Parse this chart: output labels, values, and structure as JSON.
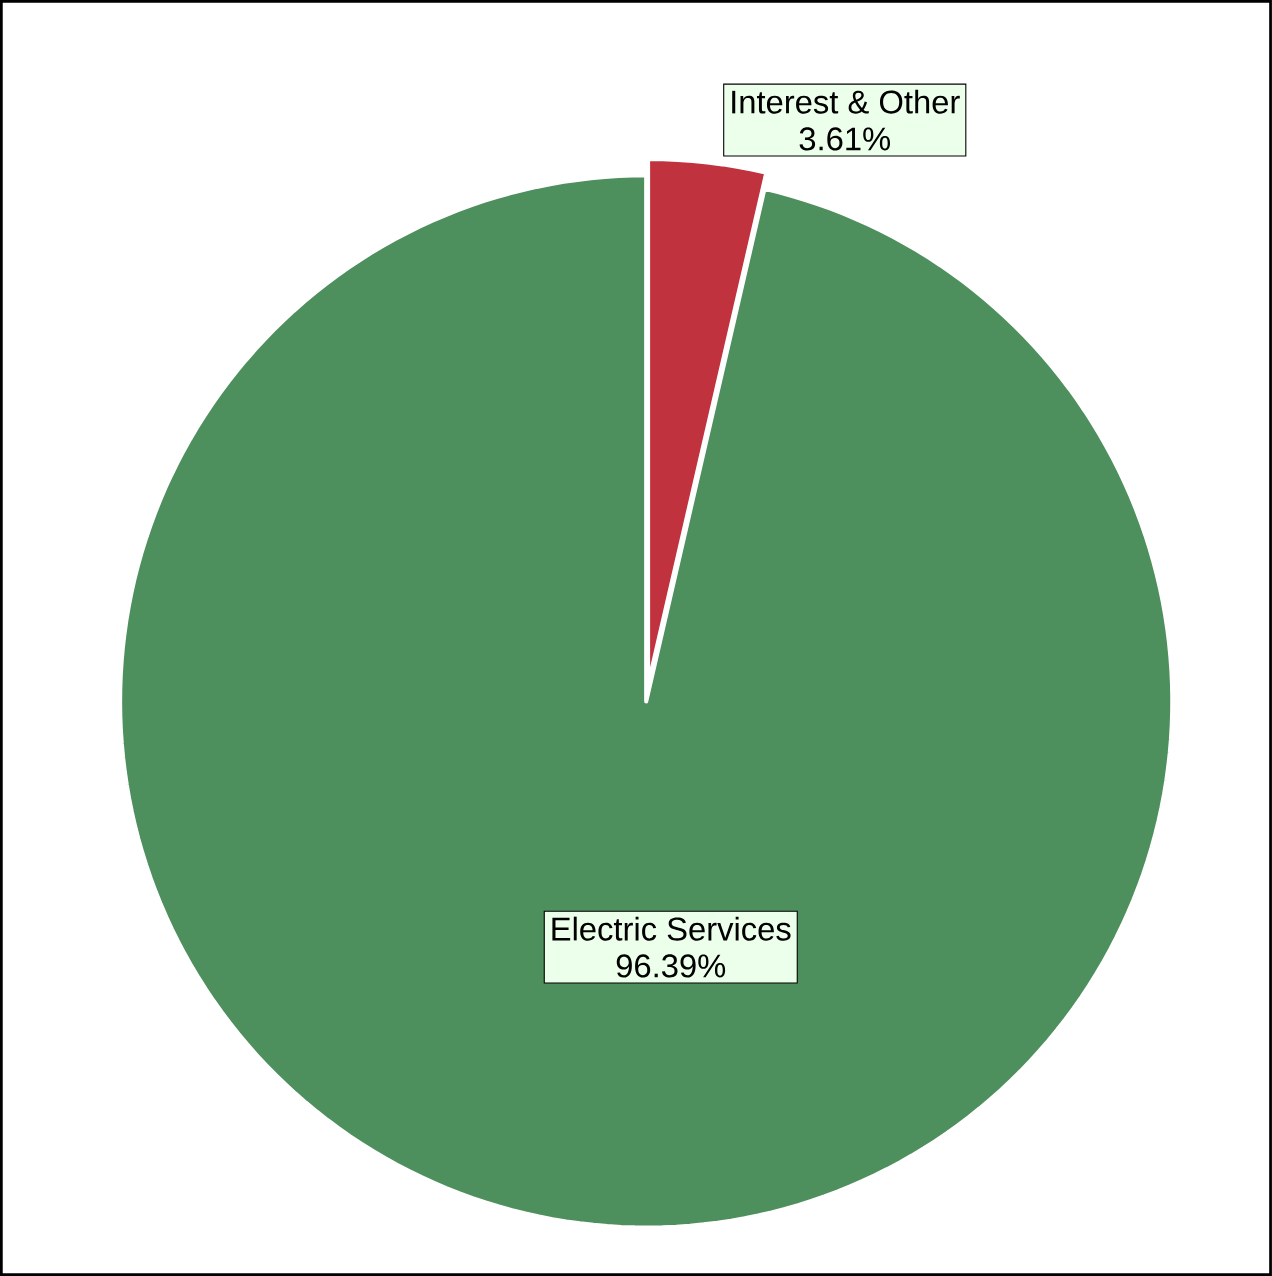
{
  "chart_data": {
    "type": "pie",
    "categories": [
      "Interest & Other",
      "Electric Services"
    ],
    "values": [
      3.61,
      96.39
    ],
    "colors": [
      "#c1323f",
      "#4e8f5e"
    ],
    "value_labels": [
      "3.61%",
      "96.39%"
    ]
  }
}
